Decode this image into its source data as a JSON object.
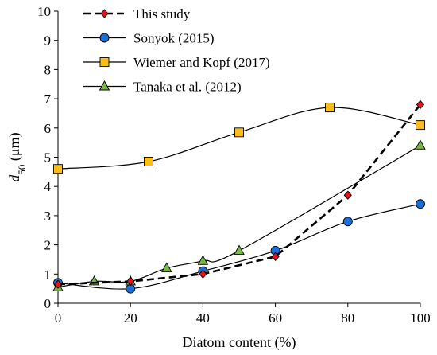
{
  "chart_data": {
    "type": "line",
    "xlabel": "Diatom content (%)",
    "ylabel_main": "d",
    "ylabel_sub": "50",
    "ylabel_unit": " (μm)",
    "xlim": [
      0,
      100
    ],
    "ylim": [
      0,
      10
    ],
    "xticks": [
      0,
      20,
      40,
      60,
      80,
      100
    ],
    "yticks": [
      0,
      1,
      2,
      3,
      4,
      5,
      6,
      7,
      8,
      9,
      10
    ],
    "grid": false,
    "legend_position": "top-left",
    "series": [
      {
        "name": "This study",
        "marker": "diamond",
        "color": "#e8141c",
        "line": "dashed",
        "smooth": false,
        "x": [
          0,
          20,
          40,
          60,
          80,
          100
        ],
        "y": [
          0.65,
          0.75,
          1.0,
          1.6,
          3.7,
          6.8
        ]
      },
      {
        "name": "Sonyok (2015)",
        "marker": "circle",
        "color": "#1a6fd6",
        "line": "solid",
        "smooth": true,
        "x": [
          0,
          20,
          40,
          60,
          80,
          100
        ],
        "y": [
          0.7,
          0.5,
          1.1,
          1.8,
          2.8,
          3.4
        ]
      },
      {
        "name": "Wiemer and Kopf (2017)",
        "marker": "square",
        "color": "#fbbd16",
        "line": "solid",
        "smooth": true,
        "x": [
          0,
          25,
          50,
          75,
          100
        ],
        "y": [
          4.6,
          4.85,
          5.85,
          6.7,
          6.1
        ]
      },
      {
        "name": "Tanaka et al. (2012)",
        "marker": "triangle",
        "color": "#7ab648",
        "line": "solid",
        "smooth": true,
        "x": [
          0,
          10,
          20,
          30,
          40,
          50,
          100
        ],
        "y": [
          0.55,
          0.75,
          0.75,
          1.2,
          1.45,
          1.8,
          5.4
        ]
      }
    ]
  }
}
